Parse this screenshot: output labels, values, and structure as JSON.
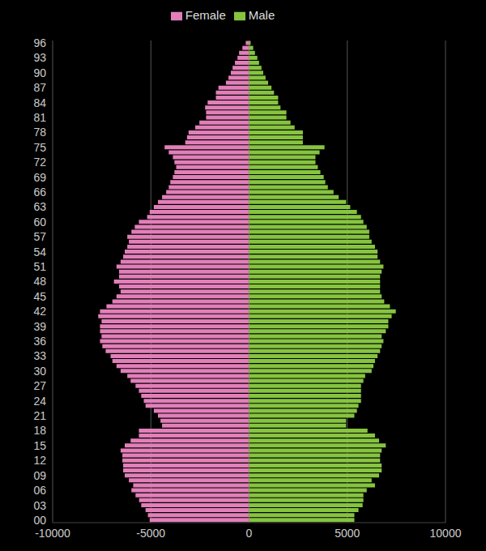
{
  "chart_data": {
    "type": "bar",
    "orientation": "horizontal",
    "stacked": true,
    "grid": true,
    "legend": "top",
    "categories": [
      "00",
      null,
      null,
      "03",
      null,
      null,
      "06",
      null,
      null,
      "09",
      null,
      null,
      "12",
      null,
      null,
      "15",
      null,
      null,
      "18",
      null,
      null,
      "21",
      null,
      null,
      "24",
      null,
      null,
      "27",
      null,
      null,
      "30",
      null,
      null,
      "33",
      null,
      null,
      "36",
      null,
      null,
      "39",
      null,
      null,
      "42",
      null,
      null,
      "45",
      null,
      null,
      "48",
      null,
      null,
      "51",
      null,
      null,
      "54",
      null,
      null,
      "57",
      null,
      null,
      "60",
      null,
      null,
      "63",
      null,
      null,
      "66",
      null,
      null,
      "69",
      null,
      null,
      "72",
      null,
      null,
      "75",
      null,
      null,
      "78",
      null,
      null,
      "81",
      null,
      null,
      "84",
      null,
      null,
      "87",
      null,
      null,
      "90",
      null,
      null,
      "93",
      null,
      null,
      "96"
    ],
    "series": [
      {
        "name": "Female",
        "color": "#e27fb9",
        "values": [
          -5060,
          -5150,
          -5270,
          -5490,
          -5600,
          -5780,
          -5990,
          -5900,
          -6120,
          -6330,
          -6410,
          -6410,
          -6450,
          -6450,
          -6540,
          -6330,
          -6030,
          -5610,
          -5610,
          -4430,
          -4510,
          -4640,
          -4850,
          -5270,
          -5360,
          -5490,
          -5610,
          -5780,
          -6030,
          -6200,
          -6540,
          -6750,
          -6960,
          -7050,
          -7300,
          -7470,
          -7590,
          -7510,
          -7590,
          -7590,
          -7510,
          -7680,
          -7590,
          -7260,
          -6960,
          -6750,
          -6540,
          -6620,
          -6880,
          -6620,
          -6620,
          -6750,
          -6540,
          -6410,
          -6330,
          -6200,
          -6120,
          -6200,
          -5990,
          -5820,
          -5610,
          -5190,
          -5060,
          -4850,
          -4640,
          -4430,
          -4220,
          -4090,
          -4010,
          -3880,
          -3800,
          -3710,
          -3800,
          -3880,
          -4090,
          -4300,
          -3250,
          -3160,
          -3080,
          -2740,
          -2530,
          -2190,
          -2190,
          -2240,
          -2110,
          -1690,
          -1690,
          -1560,
          -1180,
          -1050,
          -930,
          -840,
          -720,
          -590,
          -510,
          -340,
          -170
        ]
      },
      {
        "name": "Male",
        "color": "#86c440",
        "values": [
          5360,
          5360,
          5570,
          5780,
          5820,
          5820,
          5990,
          6410,
          6240,
          6620,
          6750,
          6750,
          6670,
          6670,
          6750,
          6960,
          6620,
          6410,
          6030,
          4940,
          4940,
          5360,
          5490,
          5570,
          5700,
          5700,
          5700,
          5700,
          5820,
          5910,
          6240,
          6330,
          6410,
          6540,
          6670,
          6750,
          6840,
          6750,
          6960,
          7090,
          7090,
          7260,
          7470,
          7170,
          6880,
          6750,
          6670,
          6670,
          6670,
          6670,
          6750,
          6840,
          6670,
          6540,
          6540,
          6410,
          6240,
          6120,
          6120,
          5990,
          5820,
          5700,
          5490,
          5150,
          4940,
          4560,
          4300,
          4010,
          3880,
          3800,
          3630,
          3500,
          3380,
          3380,
          3590,
          3840,
          2740,
          2740,
          2740,
          2320,
          2110,
          1900,
          1900,
          1600,
          1480,
          1480,
          1270,
          1140,
          970,
          840,
          720,
          630,
          510,
          420,
          300,
          210,
          80
        ]
      }
    ],
    "xlim": [
      -10000,
      10000
    ],
    "xticks": [
      -10000,
      -5000,
      0,
      5000,
      10000
    ]
  }
}
